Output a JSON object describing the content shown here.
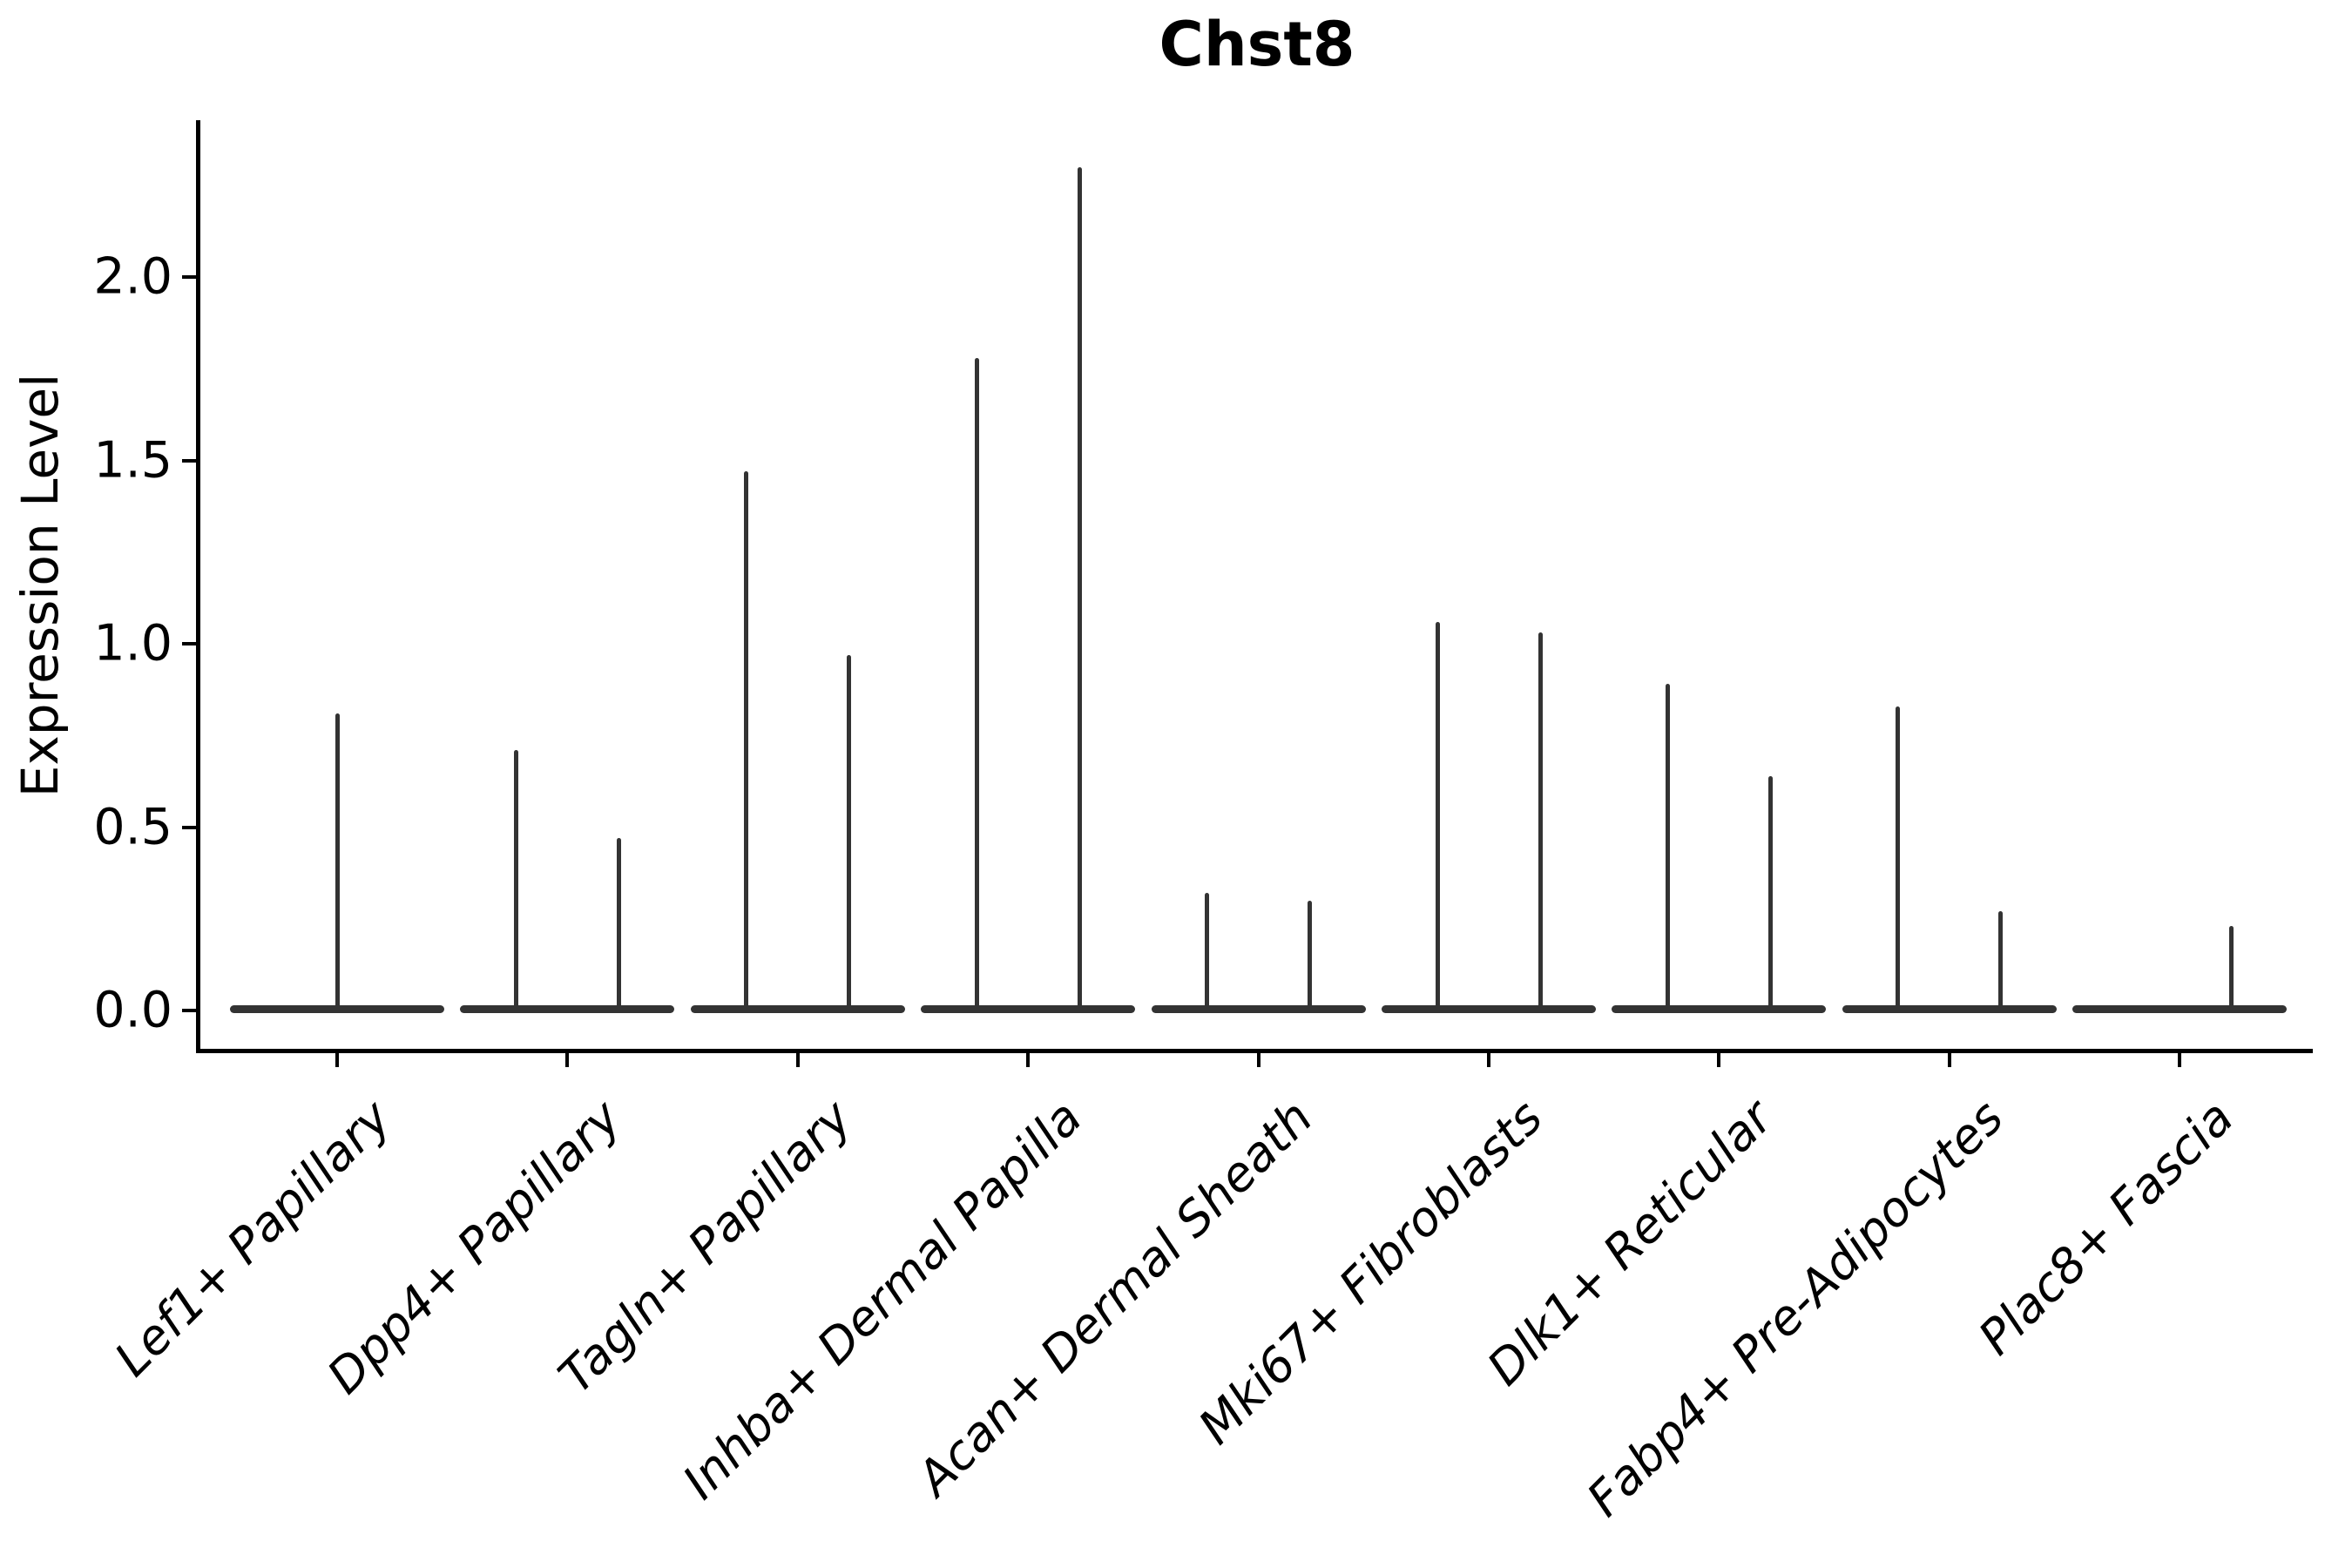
{
  "title": "Chst8",
  "axes": {
    "ylabel": "Expression Level",
    "yticks": [
      {
        "label": "0.0",
        "value": 0.0
      },
      {
        "label": "0.5",
        "value": 0.5
      },
      {
        "label": "1.0",
        "value": 1.0
      },
      {
        "label": "1.5",
        "value": 1.5
      },
      {
        "label": "2.0",
        "value": 2.0
      }
    ]
  },
  "chart_data": {
    "type": "violin",
    "title": "Chst8",
    "xlabel": "",
    "ylabel": "Expression Level",
    "ylim": [
      -0.12,
      2.42
    ],
    "ytick_values": [
      0.0,
      0.5,
      1.0,
      1.5,
      2.0
    ],
    "grid": false,
    "legend": null,
    "style_notes": "collapsed violins: flat density pancake at 0 plus thin needle tails to max expression; two dodged needle slots per category except first (single centered) and last (right slot only)",
    "categories": [
      "Lef1+ Papillary",
      "Dpp4+ Papillary",
      "Tagln+ Papillary",
      "Inhba+ Dermal Papilla",
      "Acan+ Dermal Sheath",
      "Mki67+ Fibroblasts",
      "Dlk1+ Reticular",
      "Fabp4+ Pre-Adipocytes",
      "Plac8+ Fascia"
    ],
    "series": [
      {
        "category": "Lef1+ Papillary",
        "baseline": 0.0,
        "spikes": [
          {
            "slot": "center",
            "max": 0.81
          }
        ]
      },
      {
        "category": "Dpp4+ Papillary",
        "baseline": 0.0,
        "spikes": [
          {
            "slot": "left",
            "max": 0.71
          },
          {
            "slot": "right",
            "max": 0.47
          }
        ]
      },
      {
        "category": "Tagln+ Papillary",
        "baseline": 0.0,
        "spikes": [
          {
            "slot": "left",
            "max": 1.47
          },
          {
            "slot": "right",
            "max": 0.97
          }
        ]
      },
      {
        "category": "Inhba+ Dermal Papilla",
        "baseline": 0.0,
        "spikes": [
          {
            "slot": "left",
            "max": 1.78
          },
          {
            "slot": "right",
            "max": 2.3
          }
        ]
      },
      {
        "category": "Acan+ Dermal Sheath",
        "baseline": 0.0,
        "spikes": [
          {
            "slot": "left",
            "max": 0.32
          },
          {
            "slot": "right",
            "max": 0.3
          }
        ]
      },
      {
        "category": "Mki67+ Fibroblasts",
        "baseline": 0.0,
        "spikes": [
          {
            "slot": "left",
            "max": 1.06
          },
          {
            "slot": "right",
            "max": 1.03
          }
        ]
      },
      {
        "category": "Dlk1+ Reticular",
        "baseline": 0.0,
        "spikes": [
          {
            "slot": "left",
            "max": 0.89
          },
          {
            "slot": "right",
            "max": 0.64
          }
        ]
      },
      {
        "category": "Fabp4+ Pre-Adipocytes",
        "baseline": 0.0,
        "spikes": [
          {
            "slot": "left",
            "max": 0.83
          },
          {
            "slot": "right",
            "max": 0.27
          }
        ]
      },
      {
        "category": "Plac8+ Fascia",
        "baseline": 0.0,
        "spikes": [
          {
            "slot": "right",
            "max": 0.23
          }
        ]
      }
    ],
    "colors": {
      "violin": "#333333",
      "axis": "#000000",
      "text": "#000000",
      "background": "#ffffff"
    }
  }
}
